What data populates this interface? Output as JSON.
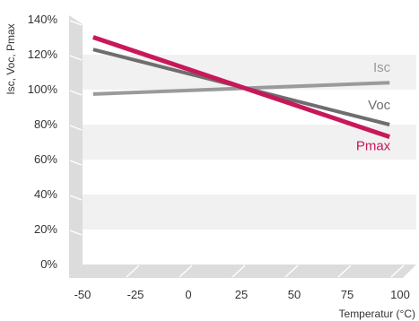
{
  "chart_data": {
    "type": "line",
    "title": "",
    "xlabel": "Temperatur (°C)",
    "ylabel": "Isc, Voc, Pmax",
    "xlim": [
      -50,
      100
    ],
    "ylim": [
      0,
      140
    ],
    "x_ticks": [
      "-50",
      "-25",
      "0",
      "25",
      "50",
      "75",
      "100"
    ],
    "y_ticks": [
      "0%",
      "20%",
      "40%",
      "60%",
      "80%",
      "100%",
      "120%",
      "140%"
    ],
    "grid": "alternating horizontal bands",
    "series": [
      {
        "name": "Isc",
        "color": "#9a9a9a",
        "x": [
          -45,
          95
        ],
        "y": [
          97.5,
          104
        ]
      },
      {
        "name": "Voc",
        "color": "#6e6e6e",
        "x": [
          -45,
          95
        ],
        "y": [
          123,
          80
        ]
      },
      {
        "name": "Pmax",
        "color": "#c8175a",
        "x": [
          -45,
          95
        ],
        "y": [
          130,
          73
        ]
      }
    ]
  }
}
